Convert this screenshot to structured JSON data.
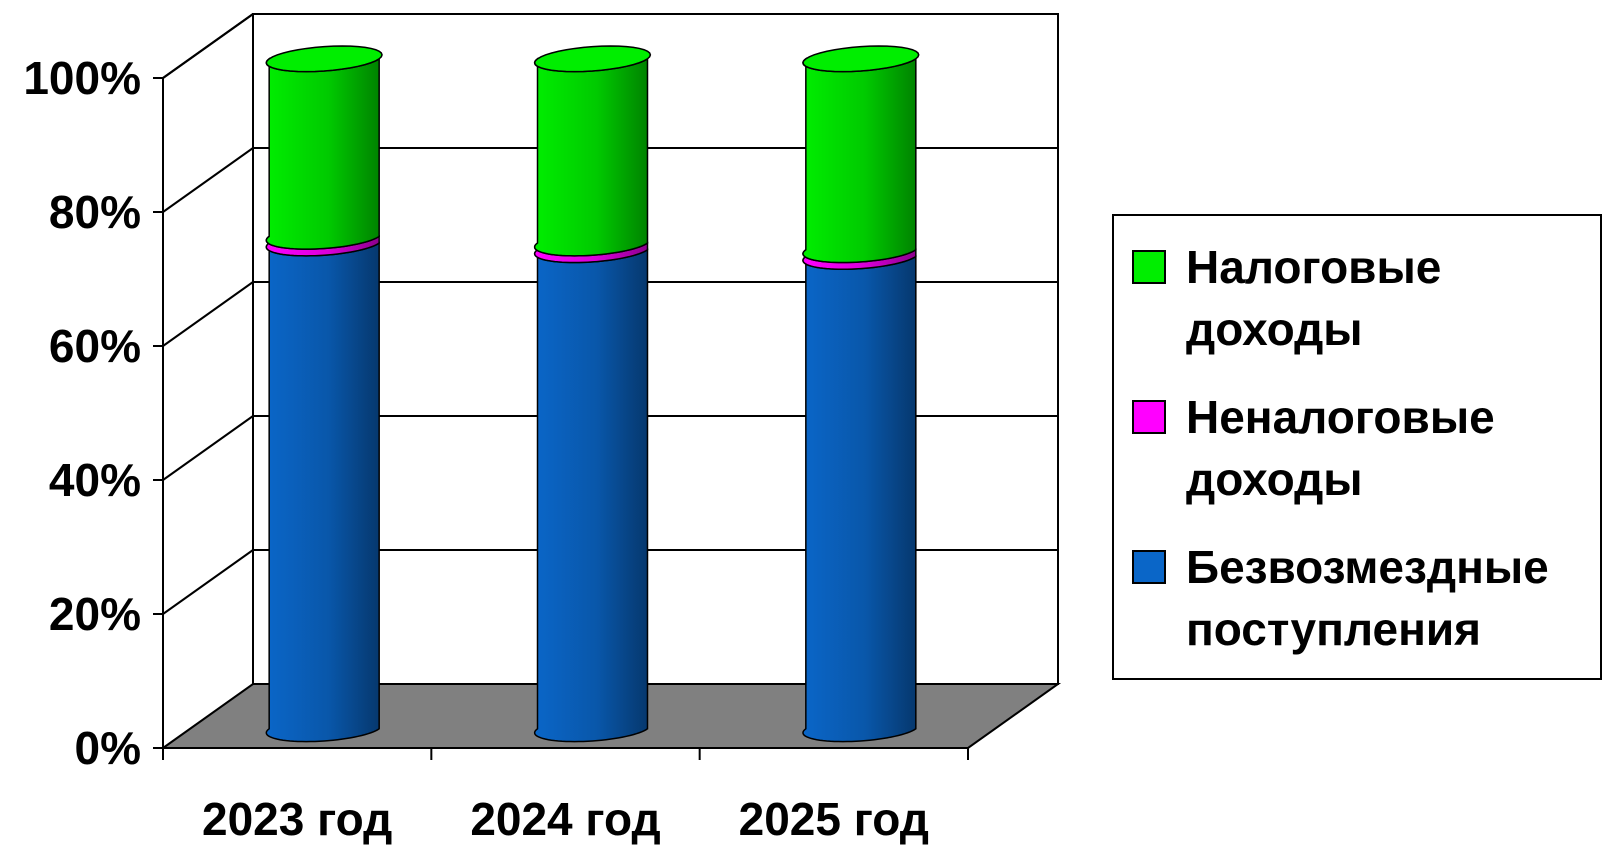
{
  "chart_data": {
    "type": "bar",
    "stacked": "percent",
    "style": "3d-cylinder",
    "categories": [
      "2023 год",
      "2024 год",
      "2025 год"
    ],
    "series": [
      {
        "name": "Безвозмездные поступления",
        "color": "#0a66c8",
        "values": [
          72.5,
          71.5,
          70.5
        ]
      },
      {
        "name": "Неналоговые доходы",
        "color": "#ff00ff",
        "values": [
          1.0,
          1.0,
          1.0
        ]
      },
      {
        "name": "Налоговые доходы",
        "color": "#00ee00",
        "values": [
          26.5,
          27.5,
          28.5
        ]
      }
    ],
    "y_ticks": [
      "0%",
      "20%",
      "40%",
      "60%",
      "80%",
      "100%"
    ],
    "ylim": [
      0,
      100
    ],
    "grid": true,
    "floor_color": "#808080",
    "legend_position": "right"
  },
  "legend": {
    "items": [
      {
        "label": "Налоговые доходы",
        "color": "#00ee00"
      },
      {
        "label": "Неналоговые доходы",
        "color": "#ff00ff"
      },
      {
        "label": "Безвозмездные поступления",
        "color": "#0a66c8"
      }
    ]
  }
}
